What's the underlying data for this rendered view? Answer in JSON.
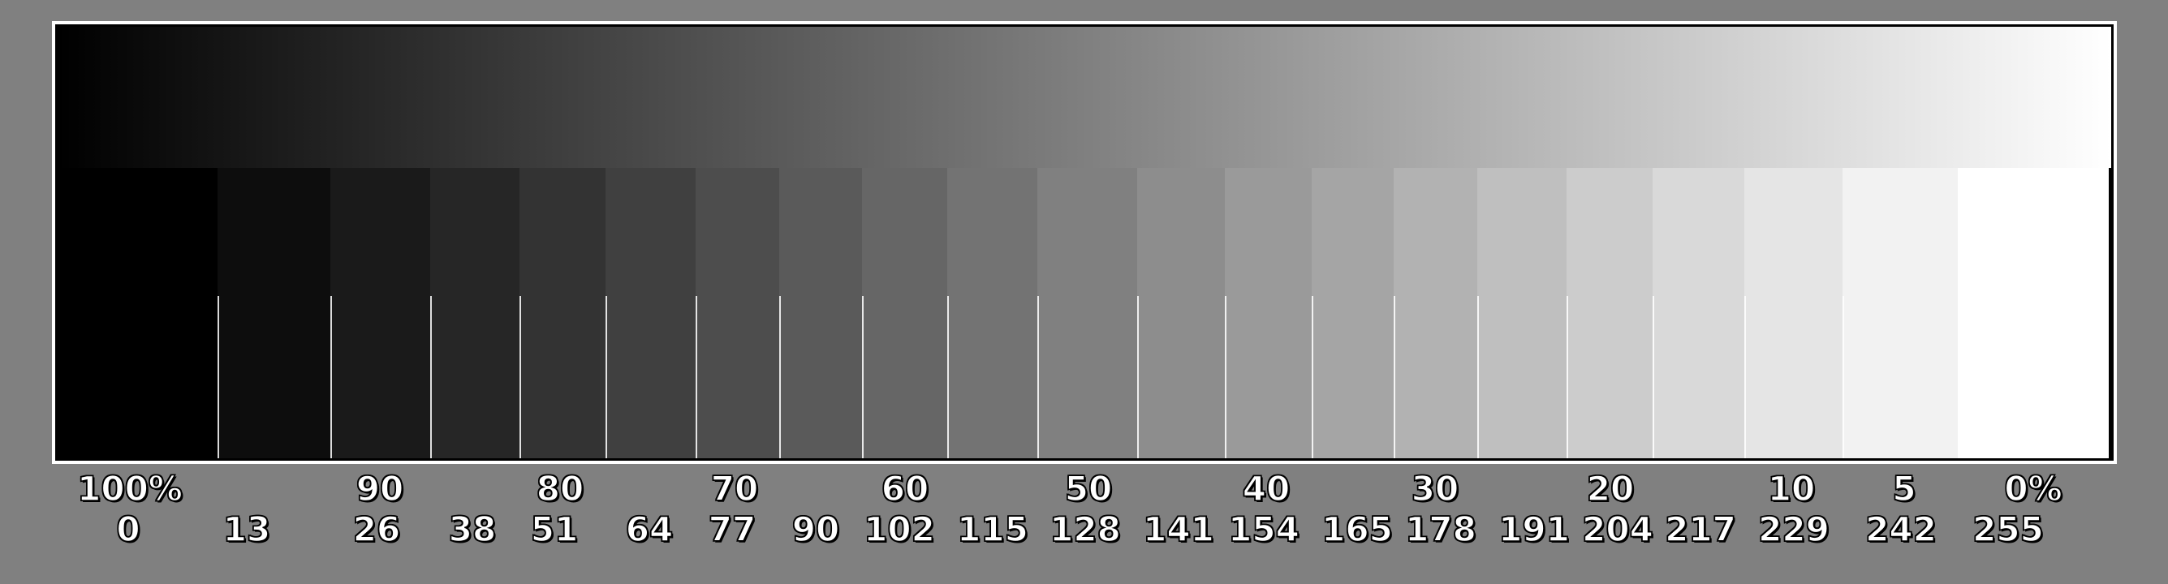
{
  "gradient": {
    "start_color": "#000000",
    "end_color": "#ffffff"
  },
  "frame_color": "#ffffff",
  "patch_values": [
    0,
    13,
    26,
    38,
    51,
    64,
    77,
    90,
    102,
    115,
    128,
    141,
    154,
    165,
    178,
    191,
    204,
    217,
    229,
    242,
    255
  ],
  "percent_labels": [
    "100%",
    "90",
    "80",
    "70",
    "60",
    "50",
    "40",
    "30",
    "20",
    "10",
    "5",
    "0%"
  ],
  "value_labels": [
    "0",
    "13",
    "26",
    "38",
    "51",
    "64",
    "77",
    "90",
    "102",
    "115",
    "128",
    "141",
    "154",
    "165",
    "178",
    "191",
    "204",
    "217",
    "229",
    "242",
    "255"
  ]
}
